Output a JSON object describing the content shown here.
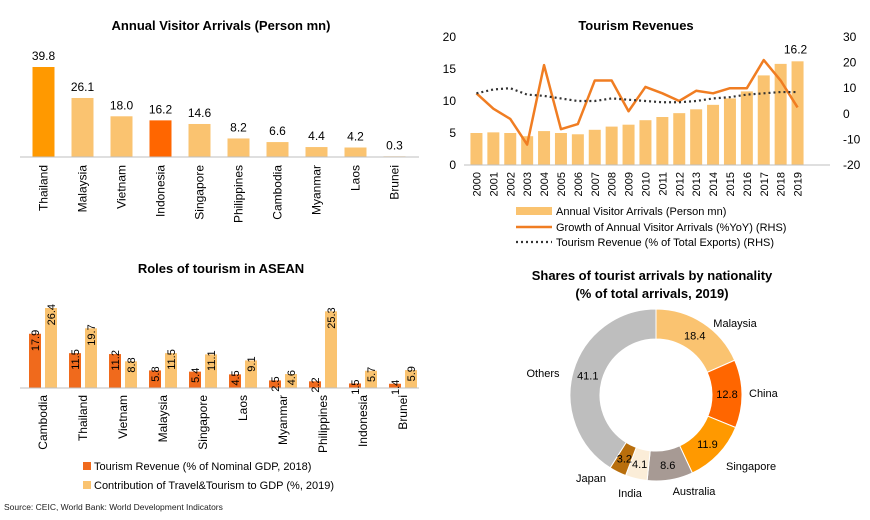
{
  "source": "Source: CEIC, World Bank: World Development Indicators",
  "chart_data": [
    {
      "type": "bar",
      "title": "Annual Visitor Arrivals (Person mn)",
      "categories": [
        "Thailand",
        "Malaysia",
        "Vietnam",
        "Indonesia",
        "Singapore",
        "Philippines",
        "Cambodia",
        "Myanmar",
        "Laos",
        "Brunei"
      ],
      "values": [
        39.8,
        26.1,
        18.0,
        16.2,
        14.6,
        8.2,
        6.6,
        4.4,
        4.2,
        0.3
      ],
      "value_labels": [
        "39.8",
        "26.1",
        "18.0",
        "16.2",
        "14.6",
        "8.2",
        "6.6",
        "4.4",
        "4.2",
        "0.3"
      ],
      "colors": [
        "#FF9900",
        "#FAC370",
        "#FAC370",
        "#FF6600",
        "#FAC370",
        "#FAC370",
        "#FAC370",
        "#FAC370",
        "#FAC370",
        "#FAC370"
      ],
      "grid": false
    },
    {
      "type": "bar+line",
      "title": "Tourism Revenues",
      "categories": [
        "2000",
        "2001",
        "2002",
        "2003",
        "2004",
        "2005",
        "2006",
        "2007",
        "2008",
        "2009",
        "2010",
        "2011",
        "2012",
        "2013",
        "2014",
        "2015",
        "2016",
        "2017",
        "2018",
        "2019"
      ],
      "y_left": {
        "min": 0,
        "max": 20,
        "ticks": [
          "0",
          "5",
          "10",
          "15",
          "20"
        ]
      },
      "y_right": {
        "min": -20,
        "max": 30,
        "ticks": [
          "-20",
          "-10",
          "0",
          "10",
          "20",
          "30"
        ]
      },
      "series": [
        {
          "name": "Annual Visitor Arrivals (Person mn)",
          "type": "bar",
          "axis": "left",
          "color": "#FAC370",
          "values": [
            5.0,
            5.1,
            5.0,
            4.5,
            5.3,
            5.0,
            4.8,
            5.5,
            6.0,
            6.3,
            7.0,
            7.5,
            8.1,
            8.7,
            9.4,
            10.4,
            11.5,
            14.0,
            15.8,
            16.2
          ]
        },
        {
          "name": "Growth of Annual Visitor Arrivals (%YoY) (RHS)",
          "type": "line",
          "axis": "right",
          "color": "#F07D22",
          "values": [
            8.0,
            2.0,
            -2.0,
            -12.0,
            19.0,
            -6.0,
            -4.0,
            13.0,
            13.0,
            1.0,
            10.5,
            8.0,
            5.0,
            9.0,
            8.0,
            10.0,
            10.0,
            21.0,
            13.0,
            2.5
          ]
        },
        {
          "name": "Tourism Revenue (% of Total Exports)  (RHS)",
          "type": "line",
          "axis": "right",
          "dashed": true,
          "color": "#333333",
          "values": [
            8.0,
            9.5,
            10.0,
            7.5,
            7.0,
            6.0,
            5.0,
            5.0,
            6.0,
            5.5,
            5.0,
            4.5,
            4.5,
            5.0,
            6.0,
            6.5,
            7.5,
            8.0,
            8.5,
            8.5
          ]
        }
      ],
      "last_bar_label": "16.2",
      "legend_position": "bottom",
      "grid": false
    },
    {
      "type": "grouped-bar",
      "title": "Roles of tourism in ASEAN",
      "categories": [
        "Cambodia",
        "Thailand",
        "Vietnam",
        "Malaysia",
        "Singapore",
        "Laos",
        "Myanmar",
        "Philippines",
        "Indonesia",
        "Brunei"
      ],
      "series": [
        {
          "name": "Tourism Revenue (% of Nominal GDP, 2018)",
          "color": "#F06A1C",
          "values": [
            17.9,
            11.5,
            11.2,
            5.8,
            5.4,
            4.5,
            2.5,
            2.2,
            1.5,
            1.4
          ],
          "labels": [
            "17.9",
            "11.5",
            "11.2",
            "5.8",
            "5.4",
            "4.5",
            "2.5",
            "2.2",
            "1.5",
            "1.4"
          ]
        },
        {
          "name": "Contribution of Travel&Tourism to GDP (%, 2019)",
          "color": "#FAC370",
          "values": [
            26.4,
            19.7,
            8.8,
            11.5,
            11.1,
            9.1,
            4.6,
            25.3,
            5.7,
            5.9
          ],
          "labels": [
            "26.4",
            "19.7",
            "8.8",
            "11.5",
            "11.1",
            "9.1",
            "4.6",
            "25.3",
            "5.7",
            "5.9"
          ]
        }
      ],
      "legend_position": "bottom",
      "grid": false
    },
    {
      "type": "pie",
      "variant": "donut",
      "title": "Shares of tourist arrivals by nationality",
      "subtitle": "(% of total arrivals, 2019)",
      "slices": [
        {
          "name": "Malaysia",
          "value": 18.4,
          "label": "18.4",
          "color": "#FAC370"
        },
        {
          "name": "China",
          "value": 12.8,
          "label": "12.8",
          "color": "#FF6600"
        },
        {
          "name": "Singapore",
          "value": 11.9,
          "label": "11.9",
          "color": "#FF9900"
        },
        {
          "name": "Australia",
          "value": 8.6,
          "label": "8.6",
          "color": "#A79A94"
        },
        {
          "name": "India",
          "value": 4.1,
          "label": "4.1",
          "color": "#FBEDD8"
        },
        {
          "name": "Japan",
          "value": 3.2,
          "label": "3.2",
          "color": "#B86E0C"
        },
        {
          "name": "Others",
          "value": 41.1,
          "label": "41.1",
          "color": "#BEBEBE"
        }
      ]
    }
  ]
}
